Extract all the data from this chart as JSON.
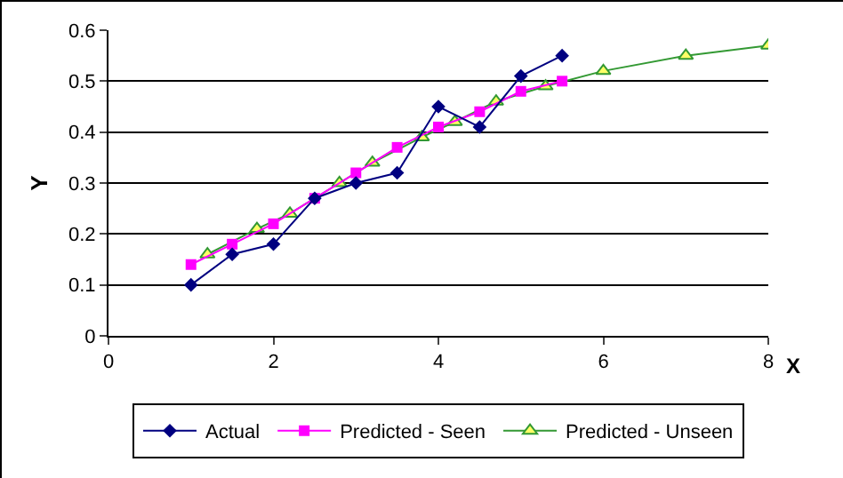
{
  "chart_data": {
    "type": "line",
    "xlabel": "X",
    "ylabel": "Y",
    "xlim": [
      0,
      8
    ],
    "xticks": [
      0,
      2,
      4,
      6,
      8
    ],
    "ylim": [
      0,
      0.6
    ],
    "yticks": [
      0,
      0.1,
      0.2,
      0.3,
      0.4,
      0.5,
      0.6
    ],
    "grid": "y",
    "legend": "bottom",
    "series": [
      {
        "name": "Actual",
        "color": "#000080",
        "marker": "diamond",
        "x": [
          1,
          1.5,
          2,
          2.5,
          3,
          3.5,
          4,
          4.5,
          5,
          5.5
        ],
        "values": [
          0.1,
          0.16,
          0.18,
          0.27,
          0.3,
          0.32,
          0.45,
          0.41,
          0.51,
          0.55
        ]
      },
      {
        "name": "Predicted - Seen",
        "color": "#ff00ff",
        "marker": "square",
        "x": [
          1,
          1.5,
          2,
          2.5,
          3,
          3.5,
          4,
          4.5,
          5,
          5.5
        ],
        "values": [
          0.14,
          0.18,
          0.22,
          0.27,
          0.32,
          0.37,
          0.41,
          0.44,
          0.48,
          0.5
        ]
      },
      {
        "name": "Predicted - Unseen",
        "color": "#339933",
        "marker": "triangle",
        "x": [
          1.2,
          1.8,
          2.2,
          2.8,
          3.2,
          3.8,
          4.2,
          4.7,
          5.3,
          6,
          7,
          8
        ],
        "values": [
          0.16,
          0.21,
          0.24,
          0.3,
          0.34,
          0.39,
          0.42,
          0.46,
          0.49,
          0.52,
          0.55,
          0.57
        ]
      }
    ]
  }
}
